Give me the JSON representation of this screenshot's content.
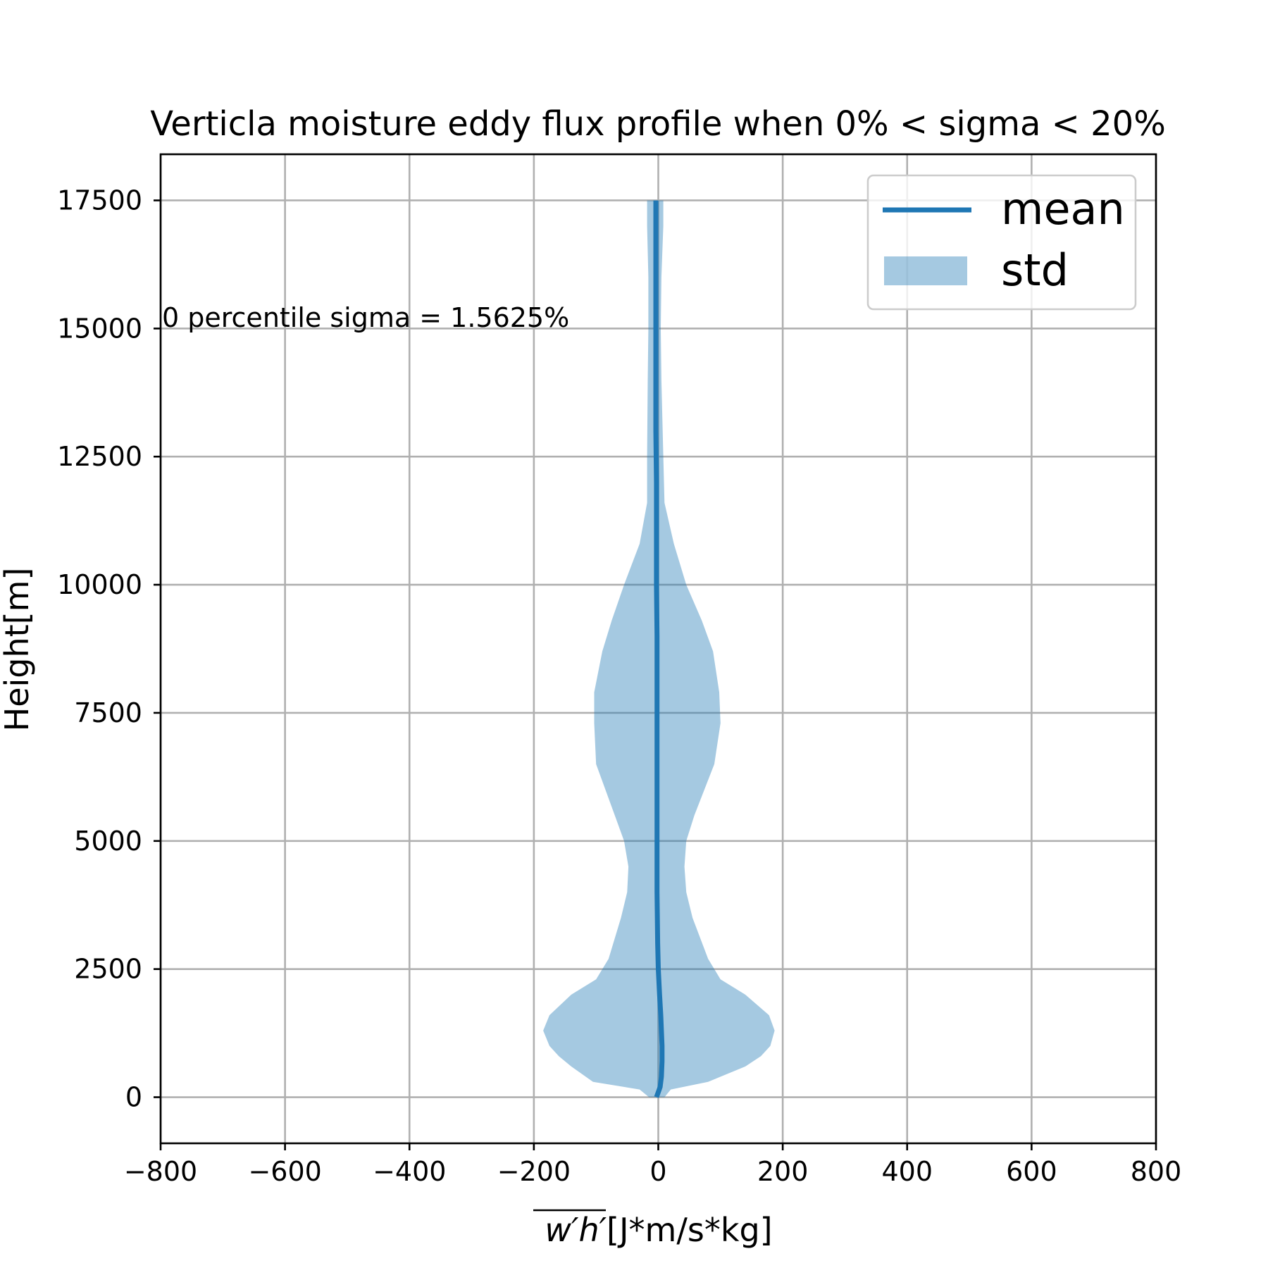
{
  "chart_data": {
    "type": "area",
    "title": "Verticla moisture eddy flux profile when 0% < sigma < 20%",
    "xlabel_math": "w′h′",
    "xlabel_unit": "[J*m/s*kg]",
    "ylabel": "Height[m]",
    "xlim": [
      -800,
      800
    ],
    "ylim": [
      -900,
      18400
    ],
    "xticks": [
      -800,
      -600,
      -400,
      -200,
      0,
      200,
      400,
      600,
      800
    ],
    "xtick_labels": [
      "−800",
      "−600",
      "−400",
      "−200",
      "0",
      "200",
      "400",
      "600",
      "800"
    ],
    "yticks": [
      0,
      2500,
      5000,
      7500,
      10000,
      12500,
      15000,
      17500
    ],
    "ytick_labels": [
      "0",
      "2500",
      "5000",
      "7500",
      "10000",
      "12500",
      "15000",
      "17500"
    ],
    "grid": true,
    "legend_position": "top-right",
    "annotation": "0 percentile sigma = 1.5625%",
    "series": [
      {
        "name": "mean",
        "kind": "line",
        "color": "#1f77b4",
        "height": [
          0,
          100,
          200,
          400,
          700,
          1000,
          1300,
          1600,
          2000,
          2500,
          3000,
          4000,
          5000,
          6000,
          7000,
          8000,
          9000,
          10000,
          11000,
          12000,
          13000,
          14000,
          15000,
          16000,
          17000,
          17500
        ],
        "values": [
          -3,
          0,
          3,
          5,
          6,
          6,
          5,
          4,
          2,
          0,
          -1,
          -2,
          -2,
          -2,
          -2,
          -2,
          -2,
          -3,
          -3,
          -3,
          -4,
          -4,
          -4,
          -4,
          -4,
          -4
        ]
      },
      {
        "name": "std",
        "kind": "band",
        "color": "#1f77b4",
        "alpha": 0.4,
        "height": [
          0,
          150,
          300,
          600,
          800,
          1000,
          1300,
          1600,
          2000,
          2300,
          2700,
          3500,
          4000,
          4500,
          5000,
          5500,
          6500,
          7300,
          7900,
          8700,
          9300,
          10000,
          10800,
          11600,
          12500,
          14000,
          15000,
          16000,
          17000,
          17500
        ],
        "lower": [
          -15,
          -30,
          -105,
          -140,
          -160,
          -175,
          -185,
          -175,
          -140,
          -100,
          -80,
          -60,
          -50,
          -48,
          -55,
          -70,
          -100,
          -103,
          -103,
          -90,
          -75,
          -55,
          -30,
          -18,
          -18,
          -17,
          -16,
          -16,
          -18,
          -18
        ],
        "upper": [
          10,
          20,
          80,
          140,
          165,
          180,
          187,
          178,
          140,
          100,
          80,
          55,
          45,
          42,
          45,
          58,
          90,
          100,
          98,
          88,
          70,
          45,
          25,
          10,
          8,
          5,
          4,
          5,
          8,
          8
        ]
      }
    ]
  }
}
